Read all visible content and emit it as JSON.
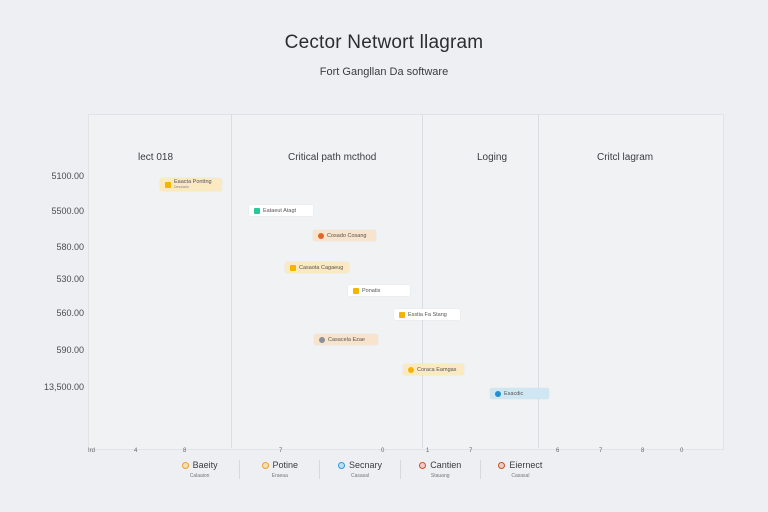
{
  "header": {
    "title": "Cector Networt llagram",
    "subtitle": "Fort Gangllan Da software"
  },
  "columns": [
    {
      "label": "lect 018"
    },
    {
      "label": "Critical path mcthod"
    },
    {
      "label": "Loging"
    },
    {
      "label": "Critcl lagram"
    }
  ],
  "y_axis_labels": [
    "5100.00",
    "5500.00",
    "580.00",
    "530.00",
    "560.00",
    "590.00",
    "13,500.00"
  ],
  "x_ticks": [
    "Ird",
    "4",
    "8",
    "7",
    "0",
    "1",
    "7",
    "6",
    "7",
    "8",
    "0"
  ],
  "nodes": [
    {
      "label": "Eaacta Ponttng",
      "sub": "Desolado",
      "color": "#f4b400",
      "bg": "#fbe9c2"
    },
    {
      "label": "Eataeut Atagt",
      "sub": "",
      "color": "#2bc79a",
      "bg": "#ffffff"
    },
    {
      "label": "Cosado Cosang",
      "sub": "",
      "color": "#e0662a",
      "bg": "#f8e4cc"
    },
    {
      "label": "Casaota Cagaeug",
      "sub": "",
      "color": "#f4b400",
      "bg": "#fbe9c2"
    },
    {
      "label": "Ponatis",
      "sub": "",
      "color": "#f4b400",
      "bg": "#ffffff"
    },
    {
      "label": "Esstia Fa Stang",
      "sub": "",
      "color": "#f4b400",
      "bg": "#ffffff"
    },
    {
      "label": "Casacela Ezae",
      "sub": "",
      "color": "#8a8f9a",
      "bg": "#f8e4cc"
    },
    {
      "label": "Coraca Eamgas",
      "sub": "",
      "color": "#f4b400",
      "bg": "#fbe9c2"
    },
    {
      "label": "Esacdic",
      "sub": "",
      "color": "#1f8fd1",
      "bg": "#cfe6f3"
    }
  ],
  "legend": [
    {
      "label": "Baeity",
      "sub": "Calaaion",
      "color": "#f0a020"
    },
    {
      "label": "Potine",
      "sub": "Eraeaa",
      "color": "#f0a020"
    },
    {
      "label": "Secnary",
      "sub": "Casasal",
      "color": "#2a9ad6"
    },
    {
      "label": "Cantien",
      "sub": "Stauang",
      "color": "#d94a2a"
    },
    {
      "label": "Eiernect",
      "sub": "Casasal",
      "color": "#c8502a"
    }
  ]
}
